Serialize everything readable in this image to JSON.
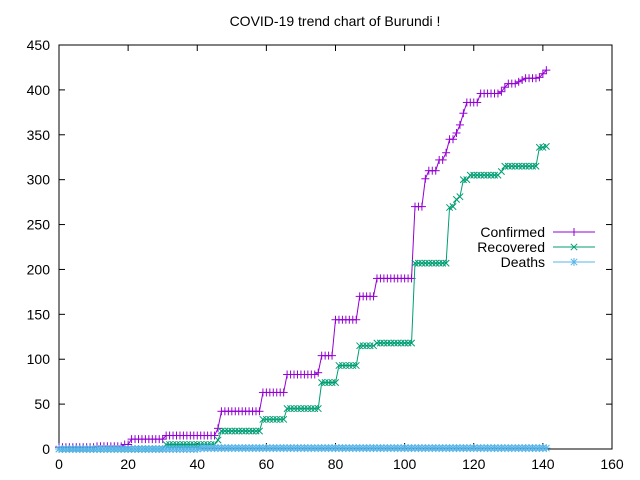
{
  "chart_data": {
    "type": "line",
    "title": "COVID-19 trend chart of Burundi !",
    "xlabel": "",
    "ylabel": "",
    "xlim": [
      0,
      160
    ],
    "ylim": [
      0,
      450
    ],
    "x_ticks": [
      0,
      20,
      40,
      60,
      80,
      100,
      120,
      140,
      160
    ],
    "y_ticks": [
      0,
      50,
      100,
      150,
      200,
      250,
      300,
      350,
      400,
      450
    ],
    "grid": false,
    "legend_position": "right",
    "series": [
      {
        "name": "Confirmed",
        "color": "#9400d3",
        "marker": "plus",
        "points": [
          [
            0,
            2
          ],
          [
            10,
            2
          ],
          [
            11,
            3
          ],
          [
            18,
            3
          ],
          [
            19,
            5
          ],
          [
            20,
            5
          ],
          [
            21,
            11
          ],
          [
            30,
            11
          ],
          [
            31,
            15
          ],
          [
            45,
            15
          ],
          [
            46,
            23
          ],
          [
            47,
            42
          ],
          [
            58,
            42
          ],
          [
            59,
            63
          ],
          [
            65,
            63
          ],
          [
            66,
            83
          ],
          [
            73,
            83
          ],
          [
            75,
            85
          ],
          [
            76,
            104
          ],
          [
            79,
            104
          ],
          [
            80,
            144
          ],
          [
            86,
            144
          ],
          [
            87,
            170
          ],
          [
            91,
            170
          ],
          [
            92,
            190
          ],
          [
            102,
            190
          ],
          [
            103,
            270
          ],
          [
            105,
            270
          ],
          [
            106,
            301
          ],
          [
            107,
            310
          ],
          [
            109,
            310
          ],
          [
            110,
            322
          ],
          [
            112,
            330
          ],
          [
            113,
            345
          ],
          [
            115,
            352
          ],
          [
            116,
            361
          ],
          [
            117,
            374
          ],
          [
            118,
            386
          ],
          [
            121,
            386
          ],
          [
            122,
            396
          ],
          [
            127,
            396
          ],
          [
            128,
            398
          ],
          [
            129,
            403
          ],
          [
            130,
            407
          ],
          [
            133,
            409
          ],
          [
            134,
            411
          ],
          [
            135,
            413
          ],
          [
            138,
            413
          ],
          [
            139,
            414
          ],
          [
            140,
            418
          ],
          [
            141,
            422
          ]
        ]
      },
      {
        "name": "Recovered",
        "color": "#009e73",
        "marker": "cross",
        "points": [
          [
            0,
            0
          ],
          [
            30,
            0
          ],
          [
            31,
            5
          ],
          [
            45,
            5
          ],
          [
            46,
            10
          ],
          [
            47,
            20
          ],
          [
            58,
            20
          ],
          [
            59,
            33
          ],
          [
            65,
            33
          ],
          [
            66,
            45
          ],
          [
            75,
            45
          ],
          [
            76,
            74
          ],
          [
            80,
            74
          ],
          [
            81,
            93
          ],
          [
            86,
            93
          ],
          [
            87,
            115
          ],
          [
            91,
            115
          ],
          [
            92,
            118
          ],
          [
            102,
            118
          ],
          [
            103,
            207
          ],
          [
            112,
            207
          ],
          [
            113,
            269
          ],
          [
            114,
            270
          ],
          [
            115,
            278
          ],
          [
            116,
            281
          ],
          [
            117,
            300
          ],
          [
            118,
            300
          ],
          [
            119,
            305
          ],
          [
            127,
            305
          ],
          [
            128,
            309
          ],
          [
            129,
            315
          ],
          [
            138,
            315
          ],
          [
            139,
            336
          ],
          [
            141,
            337
          ]
        ]
      },
      {
        "name": "Deaths",
        "color": "#56b4e9",
        "marker": "star",
        "points": [
          [
            0,
            0
          ],
          [
            40,
            0
          ],
          [
            41,
            1
          ],
          [
            141,
            1
          ]
        ]
      }
    ]
  }
}
